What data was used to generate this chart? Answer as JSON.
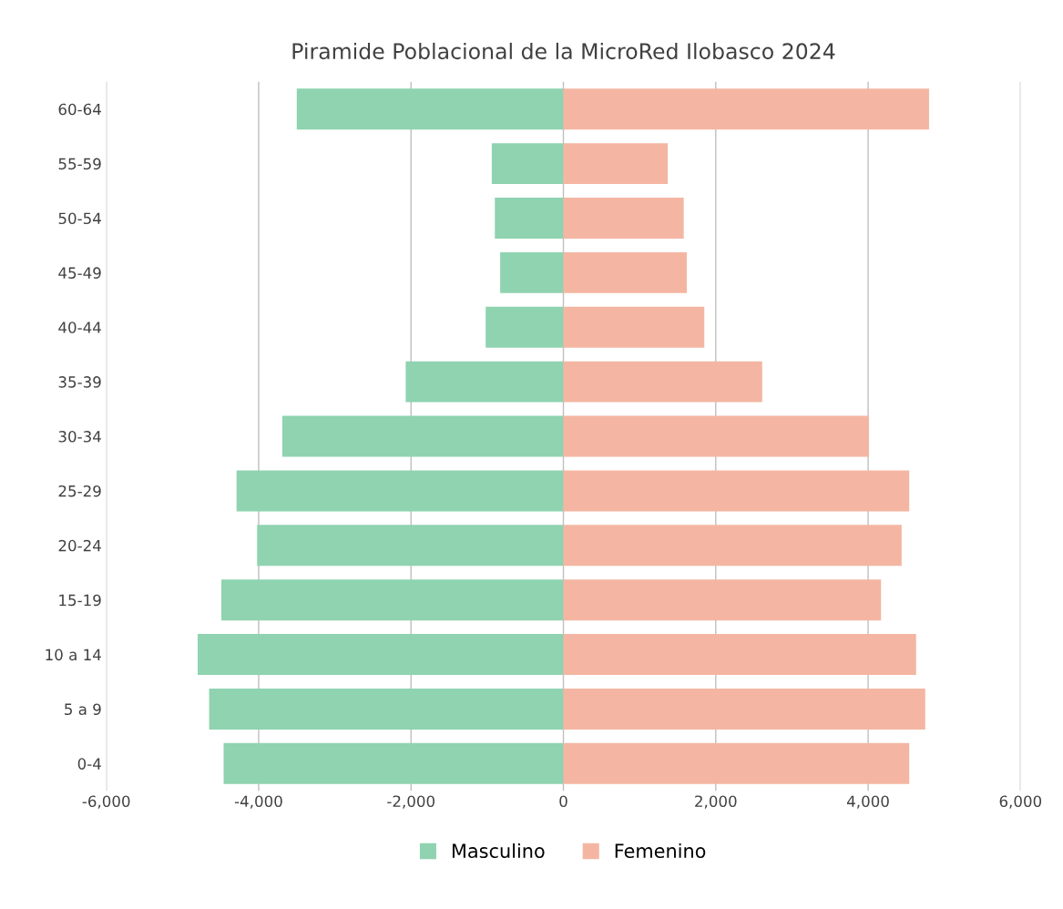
{
  "chart_data": {
    "type": "bar",
    "orientation": "horizontal",
    "stacked": true,
    "title": "Piramide Poblacional de la MicroRed Ilobasco 2024",
    "categories": [
      "60-64",
      "55-59",
      "50-54",
      "45-49",
      "40-44",
      "35-39",
      "30-34",
      "25-29",
      "20-24",
      "15-19",
      "10 a 14",
      "5 a 9",
      "0-4"
    ],
    "series": [
      {
        "name": "Masculino",
        "color": "#8fd3b0",
        "values": [
          -3500,
          -940,
          -900,
          -830,
          -1020,
          -2070,
          -3690,
          -4290,
          -4020,
          -4490,
          -4800,
          -4650,
          -4460
        ]
      },
      {
        "name": "Femenino",
        "color": "#f4b6a2",
        "values": [
          4800,
          1370,
          1580,
          1620,
          1850,
          2610,
          4010,
          4540,
          4440,
          4170,
          4630,
          4750,
          4540
        ]
      }
    ],
    "xlim": [
      -6000,
      6000
    ],
    "xticks": [
      {
        "value": -6000,
        "label": "-6,000"
      },
      {
        "value": -4000,
        "label": "-4,000"
      },
      {
        "value": -2000,
        "label": "-2,000"
      },
      0,
      {
        "value": 2000,
        "label": "2,000"
      },
      {
        "value": 4000,
        "label": "4,000"
      },
      {
        "value": 6000,
        "label": "6,000"
      }
    ],
    "grid": "x",
    "legend": "bottom"
  }
}
